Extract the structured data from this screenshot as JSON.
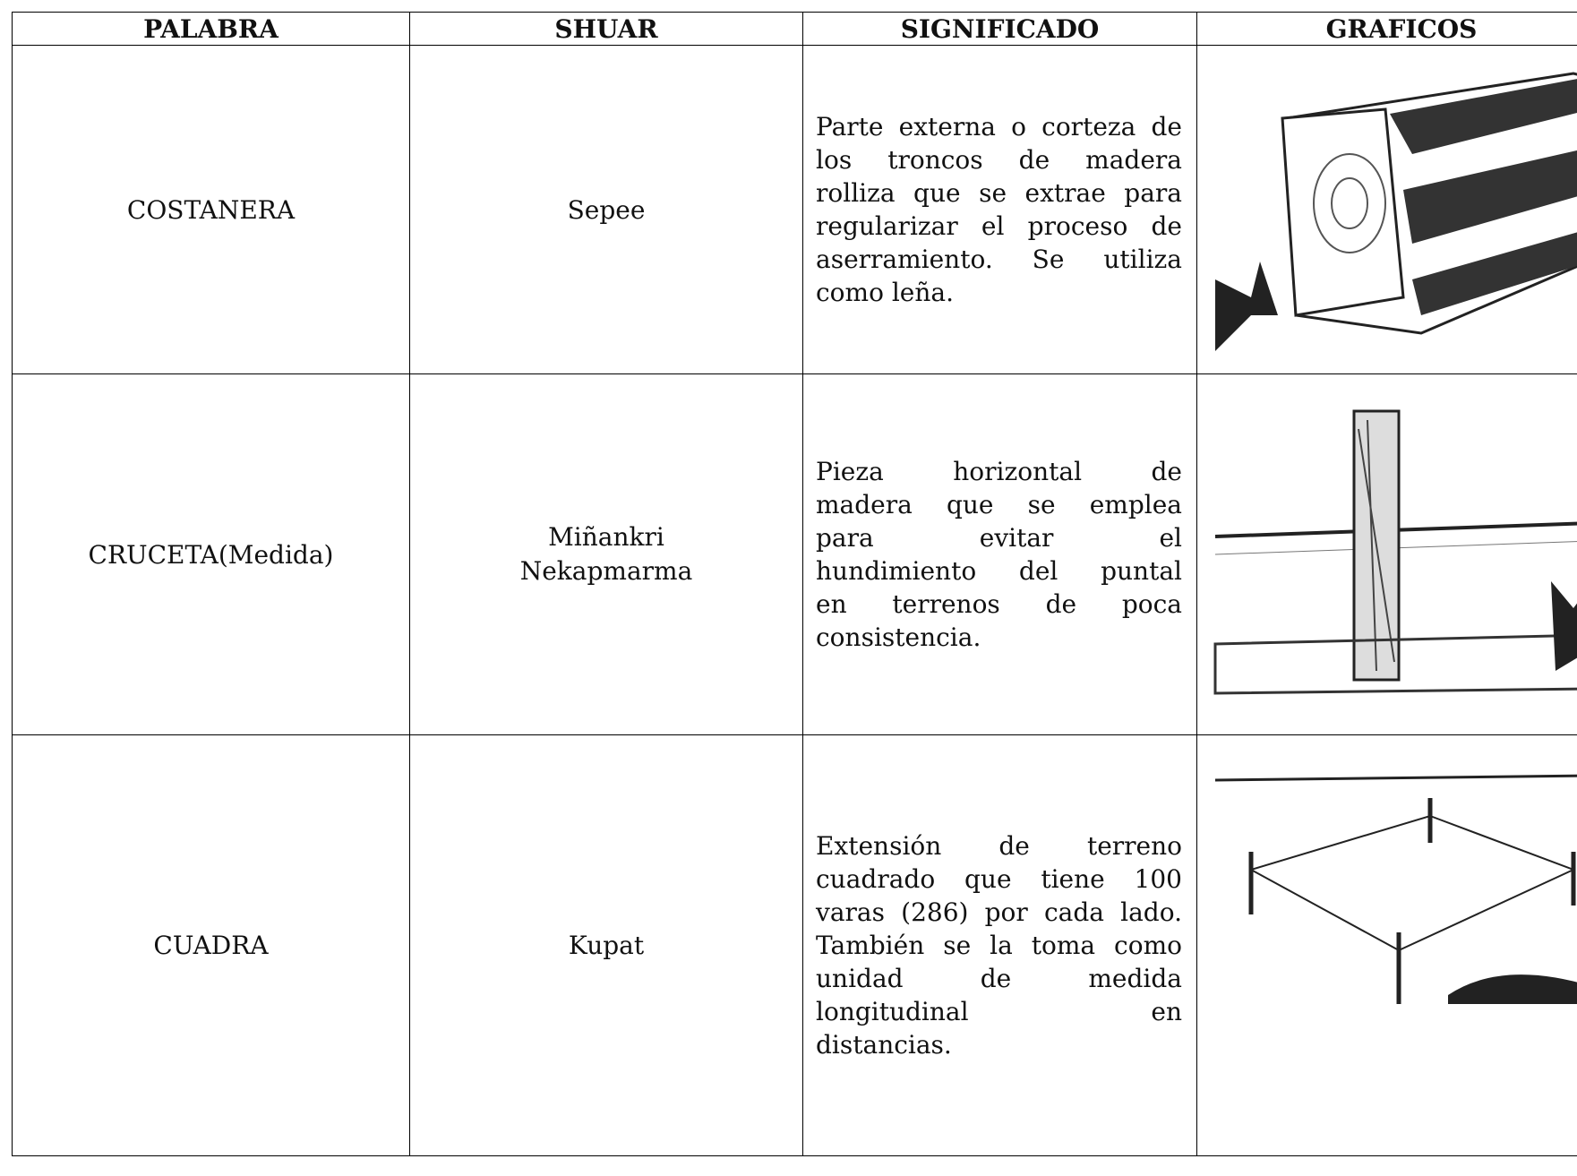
{
  "table": {
    "header": [
      "PALABRA",
      "SHUAR",
      "SIGNIFICADO",
      "GRAFICOS"
    ],
    "rows": [
      {
        "palabra": "COSTANERA",
        "shuar": "Sepee",
        "significado": [
          "Parte externa o corteza de",
          "los troncos de madera",
          "rolliza que se extrae para",
          "regularizar el proceso de",
          "aserramiento. Se utiliza",
          "como leña."
        ]
      },
      {
        "palabra": "CRUCETA(Medida)",
        "shuar": [
          "Miñankri",
          "Nekapmarma"
        ],
        "significado": [
          "Pieza horizontal de",
          "madera que se emplea",
          "para evitar el",
          "hundimiento del puntal",
          "en terrenos de poca",
          "consistencia."
        ]
      },
      {
        "palabra": "CUADRA",
        "shuar": "Kupat",
        "significado": [
          "Extensión de terreno",
          "cuadrado que tiene 100",
          "varas (286) por cada lado.",
          "También se la toma como",
          "unidad de medida",
          "longitudinal en",
          "distancias."
        ]
      }
    ]
  }
}
